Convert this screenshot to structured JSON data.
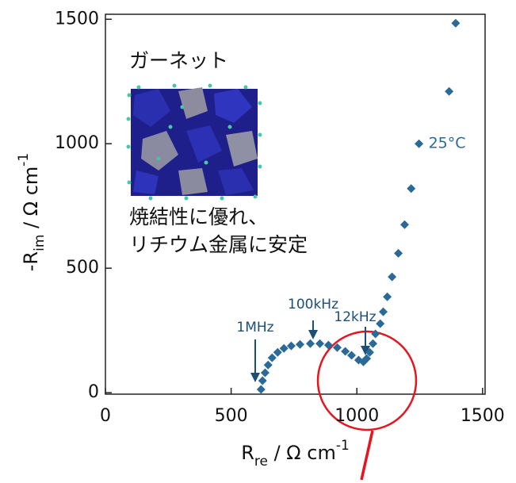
{
  "chart_data": {
    "type": "scatter",
    "xlabel": {
      "main": "R",
      "sub": "re",
      "rest": " / Ω cm",
      "sup": "-1"
    },
    "ylabel": {
      "main": "-R",
      "sub": "im",
      "rest": " / Ω cm",
      "sup": "-1"
    },
    "series": [
      {
        "name": "25°C",
        "color": "#2a6a98",
        "x": [
          619,
          625,
          635,
          647,
          663,
          685,
          710,
          739,
          774,
          815,
          853,
          887,
          922,
          954,
          979,
          1007,
          1026,
          1039,
          1051,
          1064,
          1074,
          1093,
          1105,
          1121,
          1140,
          1165,
          1190,
          1216,
          1247,
          1367,
          1393
        ],
        "values": [
          13,
          48,
          80,
          111,
          140,
          162,
          178,
          188,
          194,
          197,
          197,
          191,
          181,
          166,
          150,
          131,
          124,
          137,
          162,
          197,
          236,
          277,
          325,
          385,
          465,
          560,
          675,
          820,
          1000,
          1210,
          1484
        ]
      }
    ],
    "xlim": [
      0,
      1510
    ],
    "ylim": [
      -6,
      1520
    ],
    "xticks": [
      0,
      500,
      1000,
      1500
    ],
    "yticks": [
      0,
      500,
      1000,
      1500
    ],
    "annotations": [
      {
        "text": "1MHz"
      },
      {
        "text": "100kHz"
      },
      {
        "text": "12kHz"
      }
    ],
    "texts": [
      "ガーネット",
      "焼結性に優れ、",
      "リチウム金属に安定"
    ]
  }
}
